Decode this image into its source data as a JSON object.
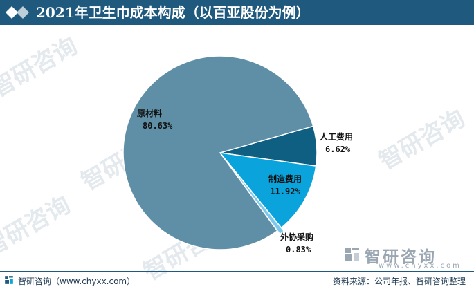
{
  "header": {
    "title": "2021年卫生巾成本构成（以百亚股份为例）",
    "bg_color": "#1f5a7e"
  },
  "watermark": {
    "text": "智研咨询"
  },
  "corner_logo": {
    "name": "智研咨询",
    "url": "www.chyxx.com"
  },
  "footer": {
    "left_text": "智研咨询（www.chyxx.com）",
    "right_text": "资料来源：公司年报、智研咨询整理"
  },
  "chart_data": {
    "type": "pie",
    "title": "2021年卫生巾成本构成（以百亚股份为例）",
    "slices": [
      {
        "name": "人工费用",
        "value": 6.62,
        "label": "6.62%",
        "color": "#0f5f82"
      },
      {
        "name": "制造费用",
        "value": 11.92,
        "label": "11.92%",
        "color": "#0aa3dc"
      },
      {
        "name": "外协采购",
        "value": 0.83,
        "label": "0.83%",
        "color": "#7cc9ec"
      },
      {
        "name": "原材料",
        "value": 80.63,
        "label": "80.63%",
        "color": "#5f8fa6"
      }
    ],
    "start_angle_deg": -16,
    "direction": "clockwise"
  }
}
